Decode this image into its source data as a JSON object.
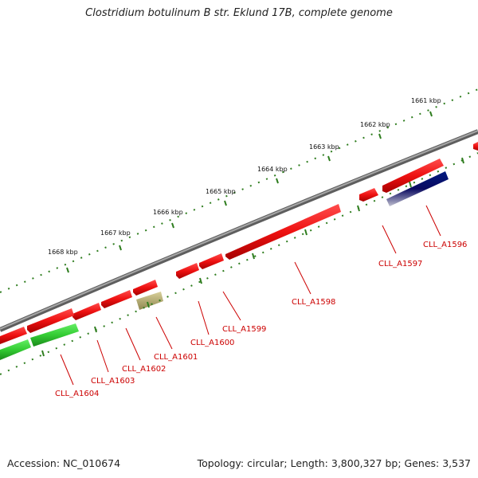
{
  "title": "Clostridium botulinum B str. Eklund 17B, complete genome",
  "footer": {
    "accession": "Accession: NC_010674",
    "summary": "Topology: circular; Length: 3,800,327 bp; Genes: 3,537"
  },
  "scale_labels": [
    "1661 kbp",
    "1662 kbp",
    "1663 kbp",
    "1664 kbp",
    "1665 kbp",
    "1666 kbp",
    "1667 kbp",
    "1668 kbp"
  ],
  "gene_labels": [
    "CLL_A1596",
    "CLL_A1597",
    "CLL_A1598",
    "CLL_A1599",
    "CLL_A1600",
    "CLL_A1601",
    "CLL_A1602",
    "CLL_A1603",
    "CLL_A1604"
  ],
  "colors": {
    "cds": "#ee1111",
    "cds_dark": "#a50000",
    "rna": "#33cc33",
    "pseudo": "#b8b070",
    "highlight": "#001a80",
    "backbone": "#808080",
    "ticks": "#2e7d1e",
    "label": "#cc0000"
  }
}
